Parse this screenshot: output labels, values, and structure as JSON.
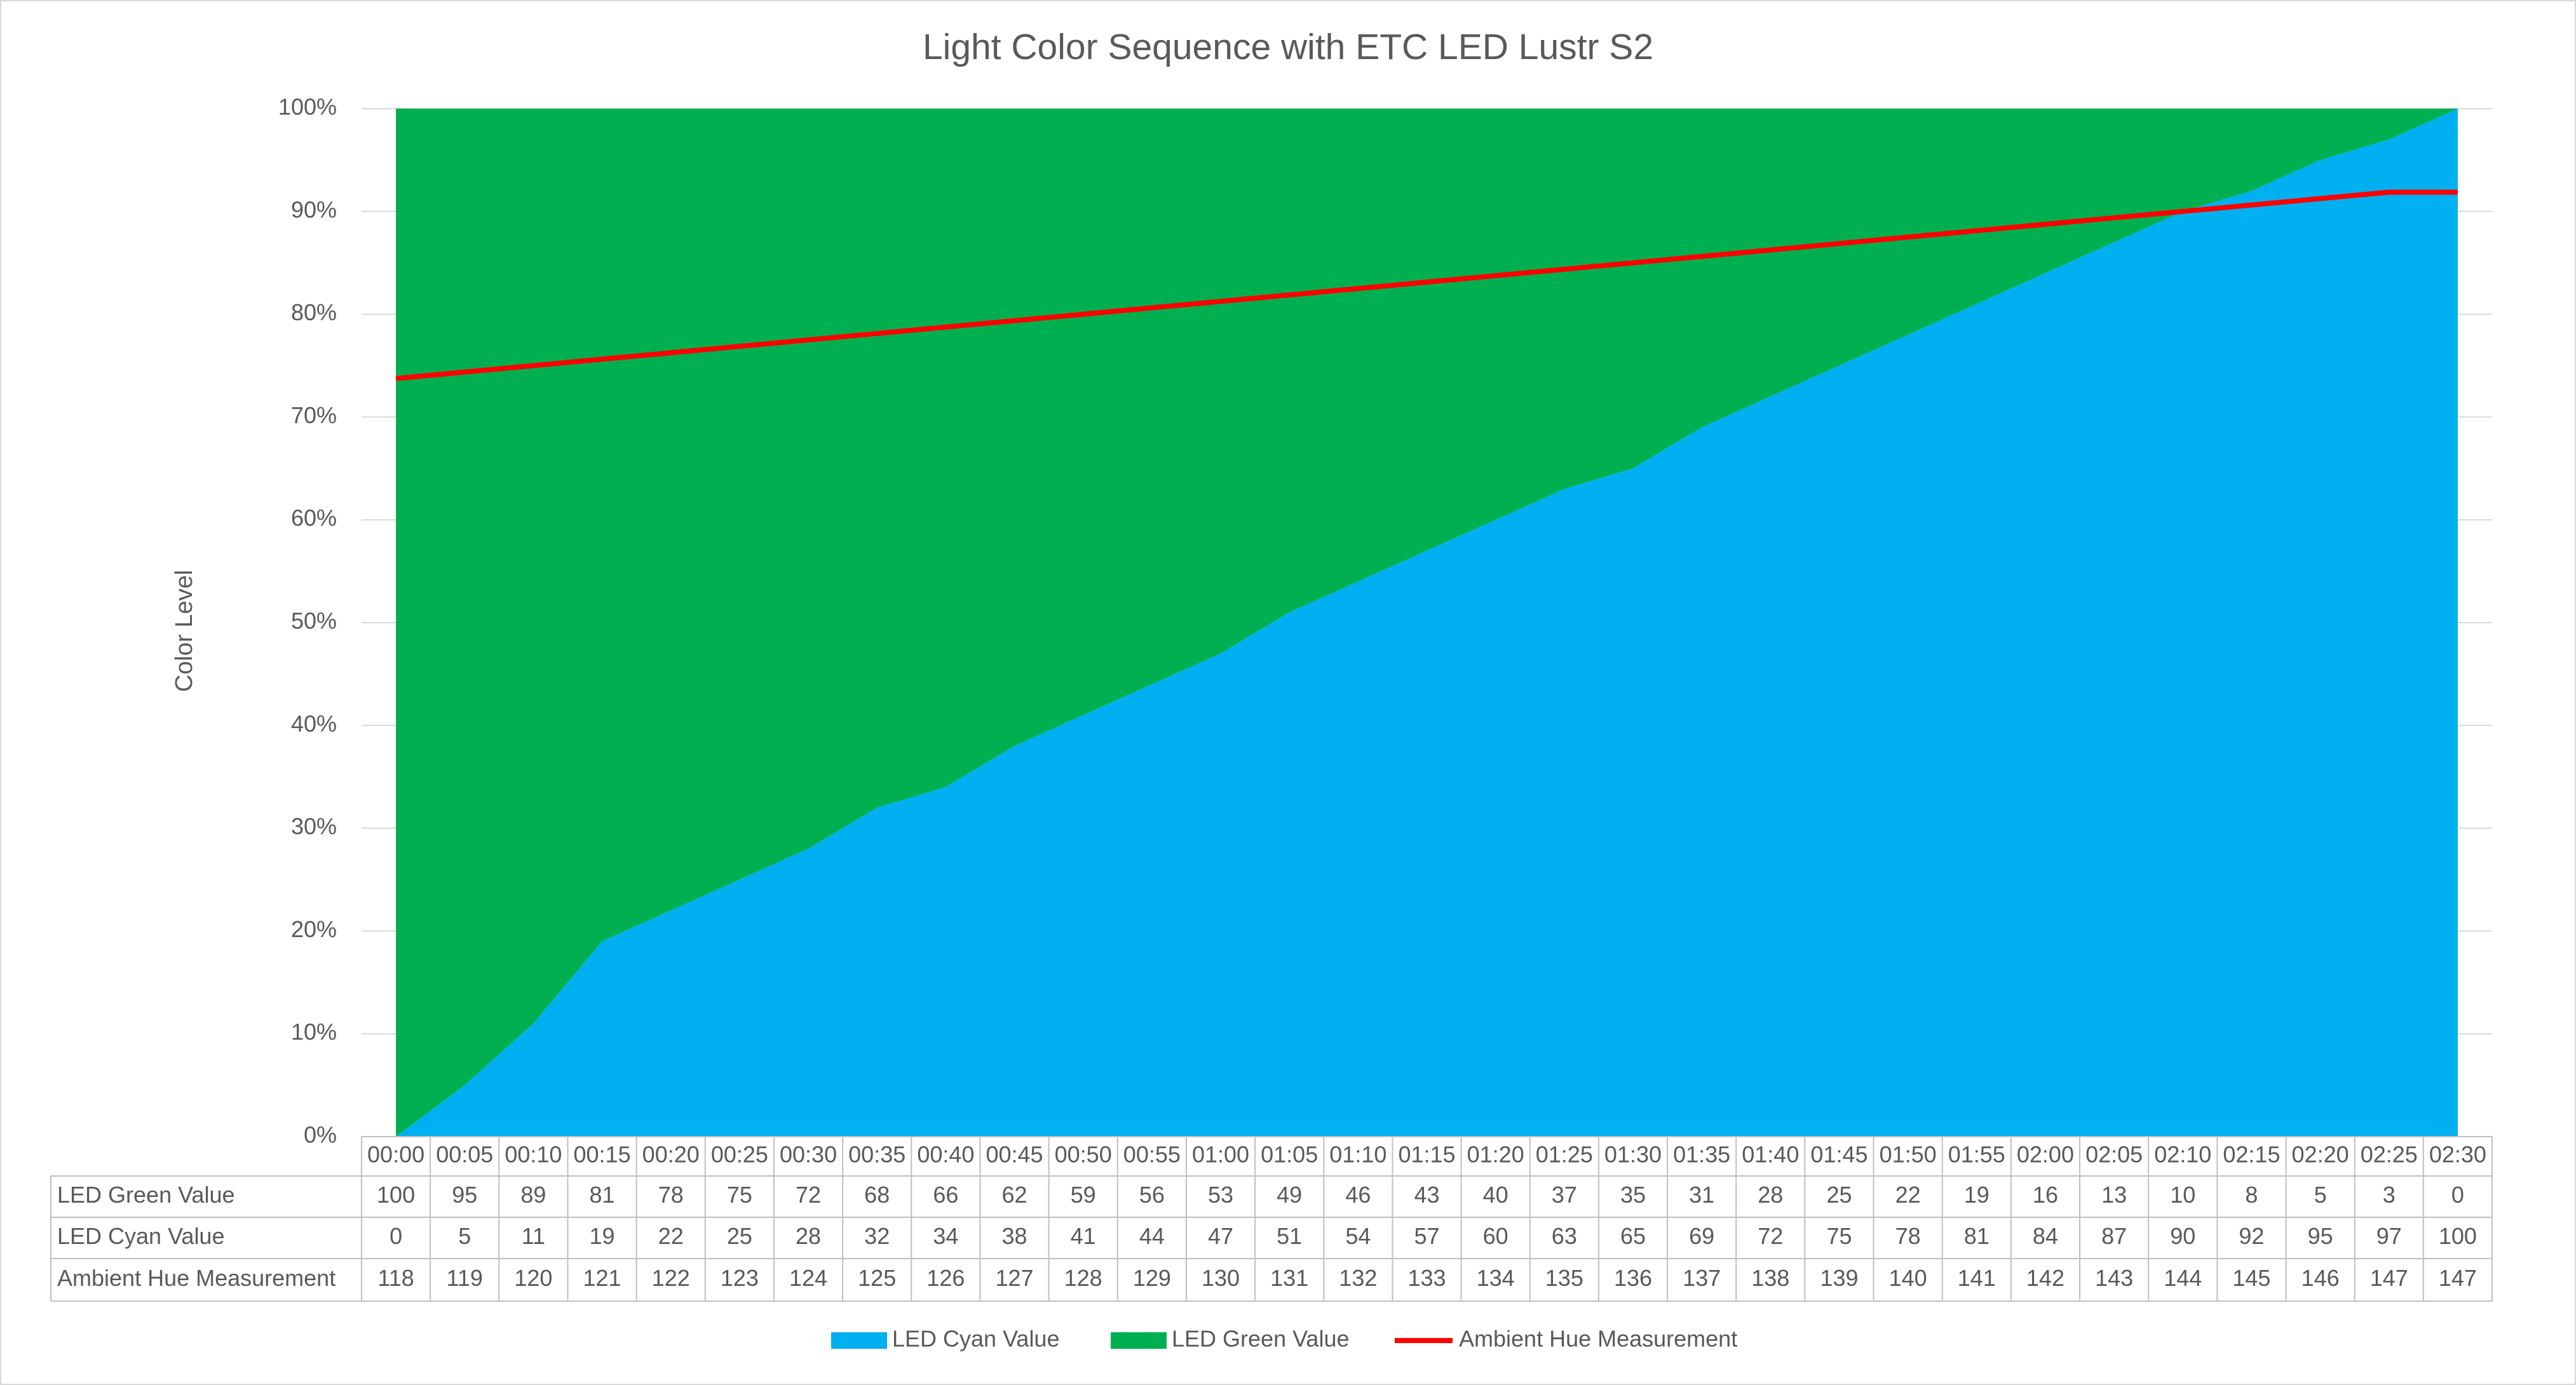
{
  "chart_data": {
    "type": "area",
    "stacked": true,
    "title": "Light Color Sequence with ETC LED Lustr S2",
    "y_label": "Color Level",
    "categories": [
      "00:00",
      "00:05",
      "00:10",
      "00:15",
      "00:20",
      "00:25",
      "00:30",
      "00:35",
      "00:40",
      "00:45",
      "00:50",
      "00:55",
      "01:00",
      "01:05",
      "01:10",
      "01:15",
      "01:20",
      "01:25",
      "01:30",
      "01:35",
      "01:40",
      "01:45",
      "01:50",
      "01:55",
      "02:00",
      "02:05",
      "02:10",
      "02:15",
      "02:20",
      "02:25",
      "02:30"
    ],
    "series": [
      {
        "name": "LED Cyan Value",
        "color": "#00b0f0",
        "type": "area",
        "values": [
          0,
          5,
          11,
          19,
          22,
          25,
          28,
          32,
          34,
          38,
          41,
          44,
          47,
          51,
          54,
          57,
          60,
          63,
          65,
          69,
          72,
          75,
          78,
          81,
          84,
          87,
          90,
          92,
          95,
          97,
          100
        ]
      },
      {
        "name": "LED Green Value",
        "color": "#00b050",
        "type": "area",
        "values": [
          100,
          95,
          89,
          81,
          78,
          75,
          72,
          68,
          66,
          62,
          59,
          56,
          53,
          49,
          46,
          43,
          40,
          37,
          35,
          31,
          28,
          25,
          22,
          19,
          16,
          13,
          10,
          8,
          5,
          3,
          0
        ]
      },
      {
        "name": "Ambient Hue Measurement",
        "color": "#ff0000",
        "type": "line",
        "axis": "y2",
        "values": [
          118,
          119,
          120,
          121,
          122,
          123,
          124,
          125,
          126,
          127,
          128,
          129,
          130,
          131,
          132,
          133,
          134,
          135,
          136,
          137,
          138,
          139,
          140,
          141,
          142,
          143,
          144,
          145,
          146,
          147,
          147
        ]
      }
    ],
    "table_rows": [
      1,
      0,
      2
    ],
    "ylim": [
      0,
      100
    ],
    "yticks": [
      {
        "value": 0,
        "label": "0%"
      },
      {
        "value": 10,
        "label": "10%"
      },
      {
        "value": 20,
        "label": "20%"
      },
      {
        "value": 30,
        "label": "30%"
      },
      {
        "value": 40,
        "label": "40%"
      },
      {
        "value": 50,
        "label": "50%"
      },
      {
        "value": 60,
        "label": "60%"
      },
      {
        "value": 70,
        "label": "70%"
      },
      {
        "value": 80,
        "label": "80%"
      },
      {
        "value": 90,
        "label": "90%"
      },
      {
        "value": 100,
        "label": "100%"
      }
    ],
    "y2lim": [
      0,
      160
    ],
    "grid": true,
    "legend": "bottom"
  }
}
